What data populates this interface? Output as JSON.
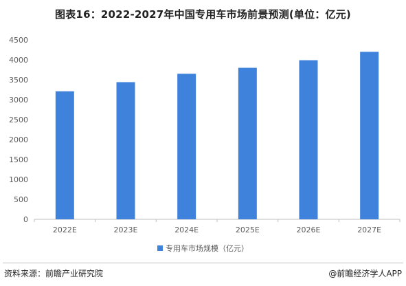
{
  "title": "图表16：2022-2027年中国专用车市场前景预测(单位：亿元)",
  "source": "资料来源：前瞻产业研究院",
  "brand": "@前瞻经济学人APP",
  "colors": {
    "bar": "#3e82dc",
    "axis": "#bfbfbf",
    "grid": "#e6e6e6",
    "tick": "#595959"
  },
  "chart_data": {
    "type": "bar",
    "categories": [
      "2022E",
      "2023E",
      "2024E",
      "2025E",
      "2026E",
      "2027E"
    ],
    "series": [
      {
        "name": "专用车市场规模（亿元）",
        "values": [
          3210,
          3440,
          3650,
          3800,
          3990,
          4200
        ]
      }
    ],
    "ylim": [
      0,
      4500
    ],
    "yticks": [
      0,
      500,
      1000,
      1500,
      2000,
      2500,
      3000,
      3500,
      4000,
      4500
    ],
    "grid": false,
    "legend": "bottom"
  }
}
